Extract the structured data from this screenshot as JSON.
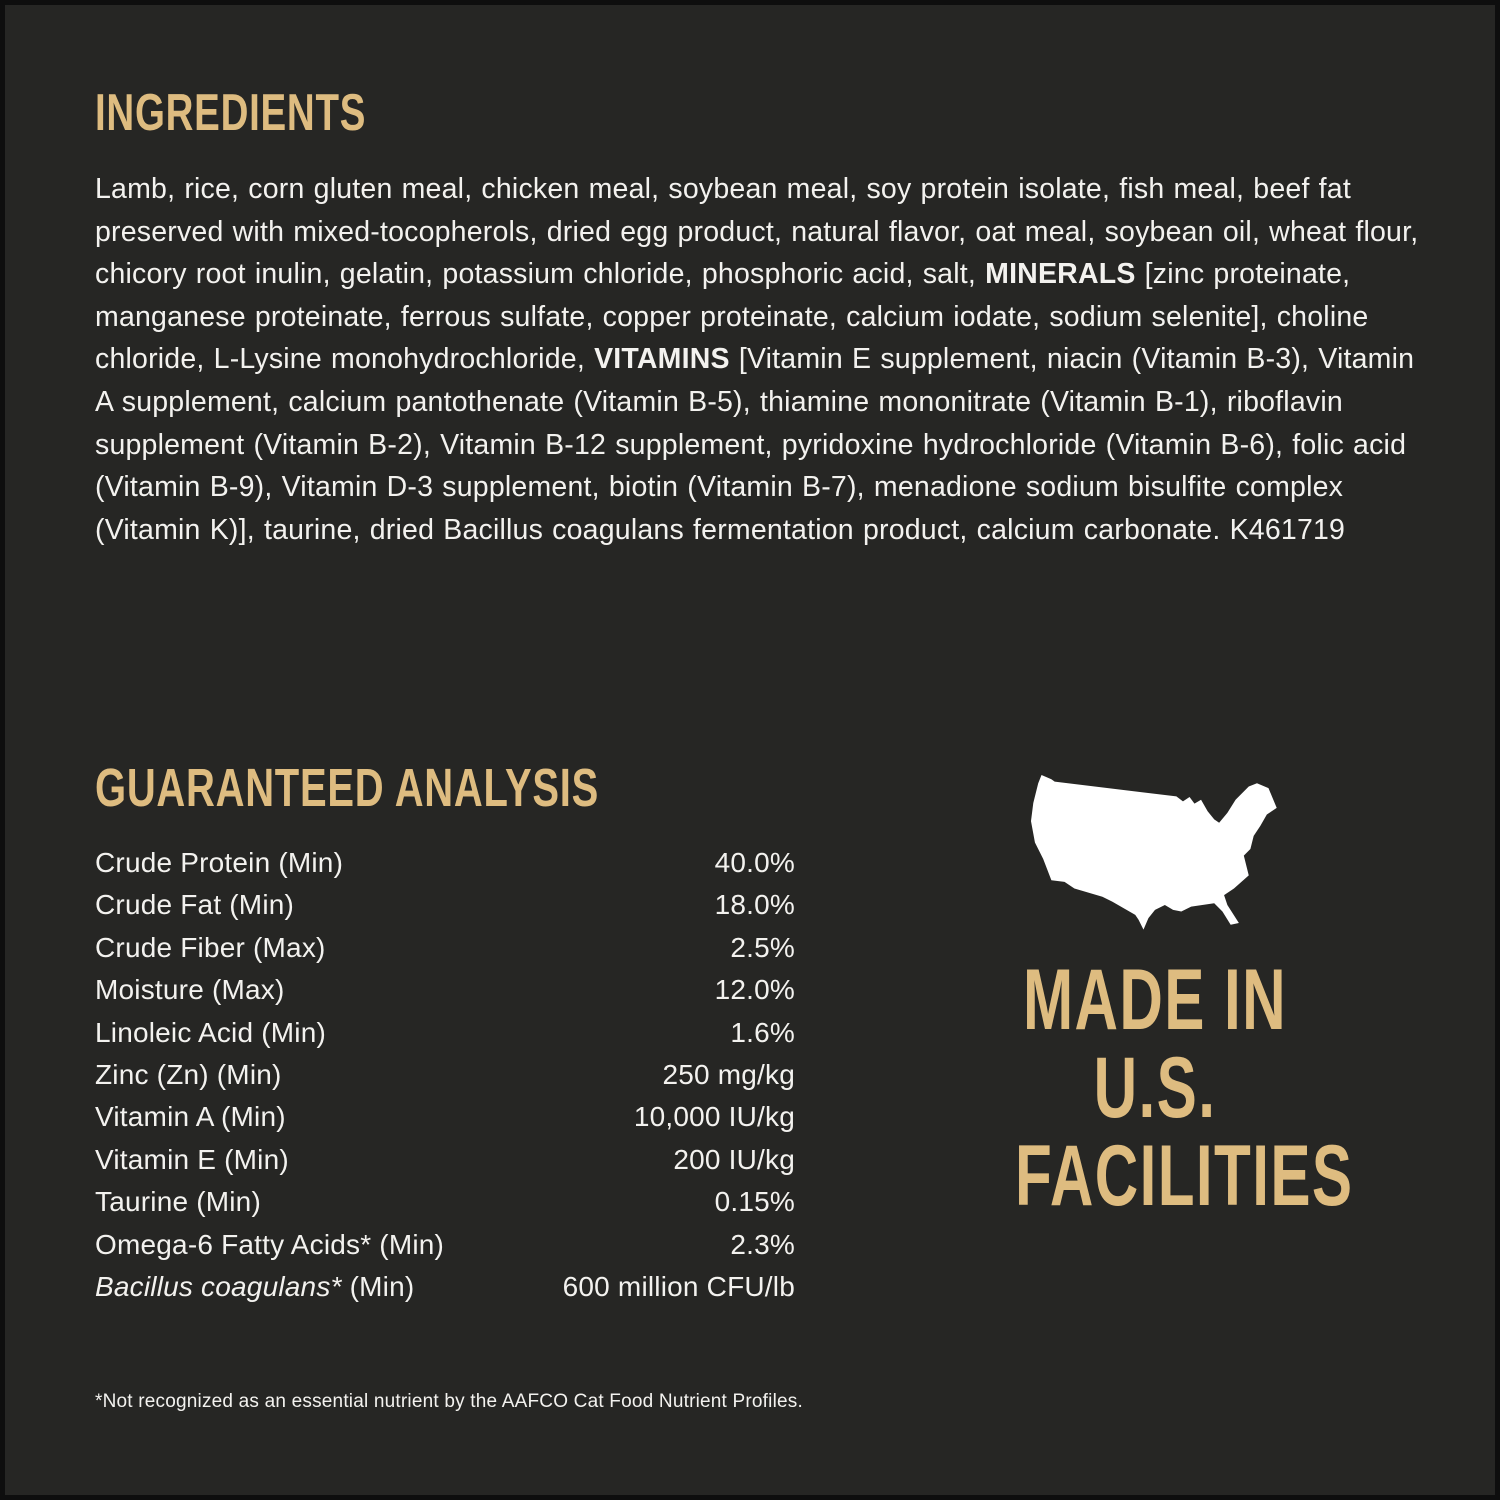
{
  "colors": {
    "accent_gold": "#debc80",
    "panel_background": "#262624",
    "edge_border": "#0e0e0e",
    "body_text": "#f3f2ef",
    "map_fill": "#ffffff"
  },
  "ingredients": {
    "heading": "INGREDIENTS",
    "segments": [
      {
        "bold": false,
        "text": "Lamb, rice, corn gluten meal, chicken meal, soybean meal, soy protein isolate, fish meal, beef fat preserved with mixed-tocopherols, dried egg product, natural flavor, oat meal, soybean oil, wheat flour, chicory root inulin, gelatin, potassium chloride, phosphoric acid, salt, "
      },
      {
        "bold": true,
        "text": "MINERALS"
      },
      {
        "bold": false,
        "text": " [zinc proteinate, manganese proteinate, ferrous sulfate, copper proteinate, calcium iodate, sodium selenite], choline chloride, L-Lysine monohydrochloride, "
      },
      {
        "bold": true,
        "text": "VITAMINS"
      },
      {
        "bold": false,
        "text": " [Vitamin E supplement, niacin (Vitamin B-3), Vitamin A supplement, calcium pantothenate (Vitamin B-5), thiamine mononitrate (Vitamin B-1), riboflavin supplement (Vitamin B-2), Vitamin B-12 supplement, pyridoxine hydrochloride (Vitamin B-6), folic acid (Vitamin B-9), Vitamin D-3 supplement, biotin (Vitamin B-7), menadione sodium bisulfite complex (Vitamin K)], taurine, dried Bacillus coagulans fermentation product, calcium carbonate. K461719"
      }
    ]
  },
  "guaranteed_analysis": {
    "heading": "GUARANTEED ANALYSIS",
    "rows": [
      {
        "label_italic": "",
        "label": "Crude Protein (Min)",
        "value": "40.0%"
      },
      {
        "label_italic": "",
        "label": "Crude Fat (Min)",
        "value": "18.0%"
      },
      {
        "label_italic": "",
        "label": "Crude Fiber (Max)",
        "value": "2.5%"
      },
      {
        "label_italic": "",
        "label": "Moisture (Max)",
        "value": "12.0%"
      },
      {
        "label_italic": "",
        "label": "Linoleic Acid (Min)",
        "value": "1.6%"
      },
      {
        "label_italic": "",
        "label": "Zinc (Zn) (Min)",
        "value": "250 mg/kg"
      },
      {
        "label_italic": "",
        "label": "Vitamin A (Min)",
        "value": "10,000 IU/kg"
      },
      {
        "label_italic": "",
        "label": "Vitamin E (Min)",
        "value": "200 IU/kg"
      },
      {
        "label_italic": "",
        "label": "Taurine (Min)",
        "value": "0.15%"
      },
      {
        "label_italic": "",
        "label": "Omega-6 Fatty Acids* (Min)",
        "value": "2.3%"
      },
      {
        "label_italic": "Bacillus coagulans*",
        "label": " (Min)",
        "value": "600 million CFU/lb"
      }
    ]
  },
  "made_in": {
    "icon": "usa-map-icon",
    "lines": [
      "MADE IN",
      "U.S.",
      "FACILITIES"
    ]
  },
  "footnote": "*Not recognized as an essential nutrient by the AAFCO Cat Food Nutrient Profiles."
}
